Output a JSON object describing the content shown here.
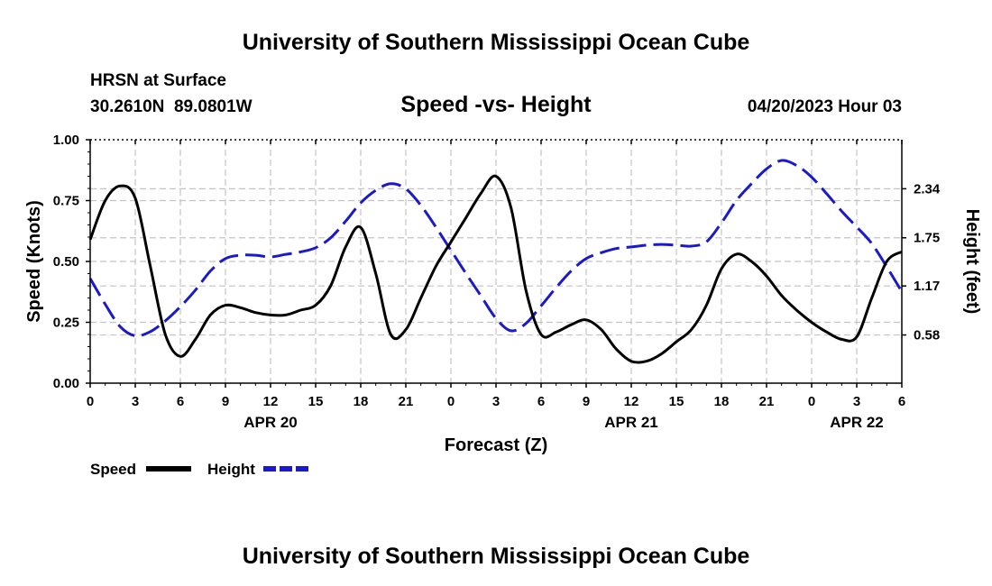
{
  "header": {
    "title": "University of Southern Mississippi Ocean Cube",
    "station": "HRSN at Surface",
    "coords": "30.2610N  89.0801W",
    "subtitle": "Speed -vs- Height",
    "timestamp": "04/20/2023 Hour 03"
  },
  "footer": {
    "title": "University of Southern Mississippi Ocean Cube"
  },
  "chart_data": {
    "type": "line",
    "title": "Speed -vs- Height",
    "xlabel": "Forecast (Z)",
    "ylabel": "Speed (Knots)",
    "y2label": "Height (feet)",
    "xlim": [
      0,
      54
    ],
    "ylim": [
      0,
      1
    ],
    "y2lim": [
      0.0,
      2.93
    ],
    "grid": true,
    "x_ticks": [
      0,
      3,
      6,
      9,
      12,
      15,
      18,
      21,
      24,
      27,
      30,
      33,
      36,
      39,
      42,
      45,
      48,
      51,
      54
    ],
    "x_tick_labels": [
      "0",
      "3",
      "6",
      "9",
      "12",
      "15",
      "18",
      "21",
      "0",
      "3",
      "6",
      "9",
      "12",
      "15",
      "18",
      "21",
      "0",
      "3",
      "6"
    ],
    "y_ticks": [
      0,
      0.25,
      0.5,
      0.75,
      1.0
    ],
    "y_tick_labels": [
      "0.00",
      "0.25",
      "0.50",
      "0.75",
      "1.00"
    ],
    "y2_ticks": [
      0.58,
      1.17,
      1.75,
      2.34
    ],
    "y2_tick_labels": [
      "0.58",
      "1.17",
      "1.75",
      "2.34"
    ],
    "dates": [
      {
        "x": 12,
        "label": "APR 20"
      },
      {
        "x": 36,
        "label": "APR 21"
      },
      {
        "x": 51,
        "label": "APR 22"
      }
    ],
    "series": [
      {
        "name": "Speed",
        "axis": "left",
        "color": "#000000",
        "style": "solid",
        "x": [
          0,
          1,
          2,
          3,
          4,
          5,
          6,
          7,
          8,
          9,
          10,
          11,
          12,
          13,
          14,
          15,
          16,
          17,
          18,
          19,
          20,
          21,
          22,
          23,
          24,
          25,
          26,
          27,
          28,
          29,
          30,
          31,
          32,
          33,
          34,
          35,
          36,
          37,
          38,
          39,
          40,
          41,
          42,
          43,
          44,
          45,
          46,
          47,
          48,
          49,
          50,
          51,
          52,
          53,
          54
        ],
        "values": [
          0.59,
          0.75,
          0.81,
          0.76,
          0.48,
          0.2,
          0.11,
          0.18,
          0.28,
          0.32,
          0.31,
          0.29,
          0.28,
          0.28,
          0.3,
          0.32,
          0.4,
          0.56,
          0.64,
          0.45,
          0.2,
          0.22,
          0.35,
          0.48,
          0.58,
          0.68,
          0.78,
          0.85,
          0.72,
          0.38,
          0.2,
          0.21,
          0.24,
          0.26,
          0.22,
          0.14,
          0.09,
          0.09,
          0.12,
          0.17,
          0.22,
          0.32,
          0.47,
          0.53,
          0.5,
          0.44,
          0.36,
          0.3,
          0.25,
          0.21,
          0.18,
          0.19,
          0.35,
          0.5,
          0.54
        ]
      },
      {
        "name": "Height",
        "axis": "right",
        "color": "#1a1acc",
        "style": "dashed",
        "x": [
          0,
          1,
          2,
          3,
          4,
          5,
          6,
          7,
          8,
          9,
          10,
          11,
          12,
          13,
          14,
          15,
          16,
          17,
          18,
          19,
          20,
          21,
          22,
          23,
          24,
          25,
          26,
          27,
          28,
          29,
          30,
          31,
          32,
          33,
          34,
          35,
          36,
          37,
          38,
          39,
          40,
          41,
          42,
          43,
          44,
          45,
          46,
          47,
          48,
          49,
          50,
          51,
          52,
          53,
          54
        ],
        "values": [
          1.26,
          0.95,
          0.68,
          0.57,
          0.62,
          0.75,
          0.92,
          1.12,
          1.35,
          1.5,
          1.54,
          1.54,
          1.52,
          1.55,
          1.58,
          1.63,
          1.75,
          1.95,
          2.17,
          2.32,
          2.4,
          2.34,
          2.14,
          1.88,
          1.6,
          1.32,
          1.05,
          0.78,
          0.63,
          0.72,
          0.93,
          1.15,
          1.35,
          1.5,
          1.57,
          1.62,
          1.64,
          1.66,
          1.67,
          1.66,
          1.65,
          1.7,
          1.93,
          2.2,
          2.4,
          2.58,
          2.68,
          2.62,
          2.48,
          2.28,
          2.07,
          1.88,
          1.68,
          1.4,
          1.1
        ]
      }
    ]
  }
}
